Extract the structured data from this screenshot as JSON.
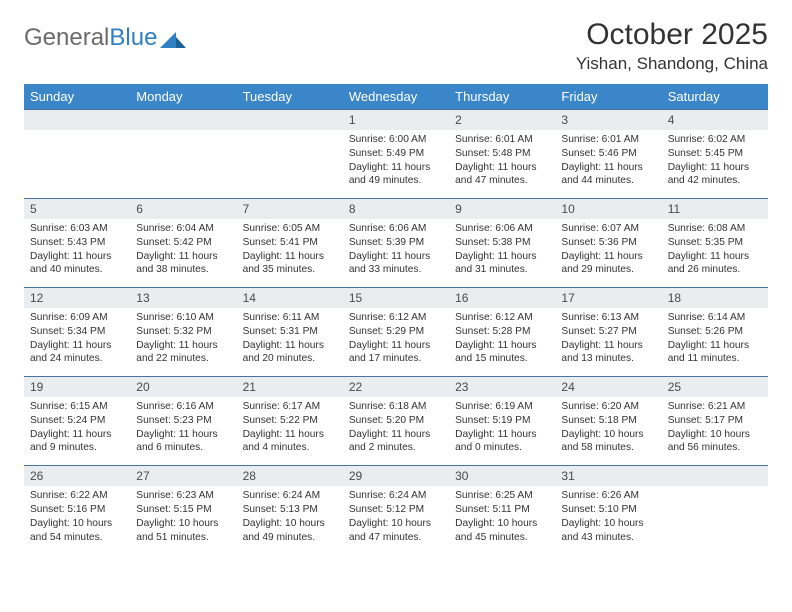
{
  "brand": {
    "part1": "General",
    "part2": "Blue"
  },
  "title": "October 2025",
  "location": "Yishan, Shandong, China",
  "colors": {
    "header_bg": "#3a86c8",
    "header_text": "#ffffff",
    "daynum_bg": "#e9edf0",
    "row_border": "#4a74a0",
    "text": "#333333",
    "logo_gray": "#6b6b6b",
    "logo_blue": "#2f7fc1"
  },
  "day_headers": [
    "Sunday",
    "Monday",
    "Tuesday",
    "Wednesday",
    "Thursday",
    "Friday",
    "Saturday"
  ],
  "weeks": [
    [
      {
        "n": "",
        "sr": "",
        "ss": "",
        "dl": ""
      },
      {
        "n": "",
        "sr": "",
        "ss": "",
        "dl": ""
      },
      {
        "n": "",
        "sr": "",
        "ss": "",
        "dl": ""
      },
      {
        "n": "1",
        "sr": "Sunrise: 6:00 AM",
        "ss": "Sunset: 5:49 PM",
        "dl": "Daylight: 11 hours and 49 minutes."
      },
      {
        "n": "2",
        "sr": "Sunrise: 6:01 AM",
        "ss": "Sunset: 5:48 PM",
        "dl": "Daylight: 11 hours and 47 minutes."
      },
      {
        "n": "3",
        "sr": "Sunrise: 6:01 AM",
        "ss": "Sunset: 5:46 PM",
        "dl": "Daylight: 11 hours and 44 minutes."
      },
      {
        "n": "4",
        "sr": "Sunrise: 6:02 AM",
        "ss": "Sunset: 5:45 PM",
        "dl": "Daylight: 11 hours and 42 minutes."
      }
    ],
    [
      {
        "n": "5",
        "sr": "Sunrise: 6:03 AM",
        "ss": "Sunset: 5:43 PM",
        "dl": "Daylight: 11 hours and 40 minutes."
      },
      {
        "n": "6",
        "sr": "Sunrise: 6:04 AM",
        "ss": "Sunset: 5:42 PM",
        "dl": "Daylight: 11 hours and 38 minutes."
      },
      {
        "n": "7",
        "sr": "Sunrise: 6:05 AM",
        "ss": "Sunset: 5:41 PM",
        "dl": "Daylight: 11 hours and 35 minutes."
      },
      {
        "n": "8",
        "sr": "Sunrise: 6:06 AM",
        "ss": "Sunset: 5:39 PM",
        "dl": "Daylight: 11 hours and 33 minutes."
      },
      {
        "n": "9",
        "sr": "Sunrise: 6:06 AM",
        "ss": "Sunset: 5:38 PM",
        "dl": "Daylight: 11 hours and 31 minutes."
      },
      {
        "n": "10",
        "sr": "Sunrise: 6:07 AM",
        "ss": "Sunset: 5:36 PM",
        "dl": "Daylight: 11 hours and 29 minutes."
      },
      {
        "n": "11",
        "sr": "Sunrise: 6:08 AM",
        "ss": "Sunset: 5:35 PM",
        "dl": "Daylight: 11 hours and 26 minutes."
      }
    ],
    [
      {
        "n": "12",
        "sr": "Sunrise: 6:09 AM",
        "ss": "Sunset: 5:34 PM",
        "dl": "Daylight: 11 hours and 24 minutes."
      },
      {
        "n": "13",
        "sr": "Sunrise: 6:10 AM",
        "ss": "Sunset: 5:32 PM",
        "dl": "Daylight: 11 hours and 22 minutes."
      },
      {
        "n": "14",
        "sr": "Sunrise: 6:11 AM",
        "ss": "Sunset: 5:31 PM",
        "dl": "Daylight: 11 hours and 20 minutes."
      },
      {
        "n": "15",
        "sr": "Sunrise: 6:12 AM",
        "ss": "Sunset: 5:29 PM",
        "dl": "Daylight: 11 hours and 17 minutes."
      },
      {
        "n": "16",
        "sr": "Sunrise: 6:12 AM",
        "ss": "Sunset: 5:28 PM",
        "dl": "Daylight: 11 hours and 15 minutes."
      },
      {
        "n": "17",
        "sr": "Sunrise: 6:13 AM",
        "ss": "Sunset: 5:27 PM",
        "dl": "Daylight: 11 hours and 13 minutes."
      },
      {
        "n": "18",
        "sr": "Sunrise: 6:14 AM",
        "ss": "Sunset: 5:26 PM",
        "dl": "Daylight: 11 hours and 11 minutes."
      }
    ],
    [
      {
        "n": "19",
        "sr": "Sunrise: 6:15 AM",
        "ss": "Sunset: 5:24 PM",
        "dl": "Daylight: 11 hours and 9 minutes."
      },
      {
        "n": "20",
        "sr": "Sunrise: 6:16 AM",
        "ss": "Sunset: 5:23 PM",
        "dl": "Daylight: 11 hours and 6 minutes."
      },
      {
        "n": "21",
        "sr": "Sunrise: 6:17 AM",
        "ss": "Sunset: 5:22 PM",
        "dl": "Daylight: 11 hours and 4 minutes."
      },
      {
        "n": "22",
        "sr": "Sunrise: 6:18 AM",
        "ss": "Sunset: 5:20 PM",
        "dl": "Daylight: 11 hours and 2 minutes."
      },
      {
        "n": "23",
        "sr": "Sunrise: 6:19 AM",
        "ss": "Sunset: 5:19 PM",
        "dl": "Daylight: 11 hours and 0 minutes."
      },
      {
        "n": "24",
        "sr": "Sunrise: 6:20 AM",
        "ss": "Sunset: 5:18 PM",
        "dl": "Daylight: 10 hours and 58 minutes."
      },
      {
        "n": "25",
        "sr": "Sunrise: 6:21 AM",
        "ss": "Sunset: 5:17 PM",
        "dl": "Daylight: 10 hours and 56 minutes."
      }
    ],
    [
      {
        "n": "26",
        "sr": "Sunrise: 6:22 AM",
        "ss": "Sunset: 5:16 PM",
        "dl": "Daylight: 10 hours and 54 minutes."
      },
      {
        "n": "27",
        "sr": "Sunrise: 6:23 AM",
        "ss": "Sunset: 5:15 PM",
        "dl": "Daylight: 10 hours and 51 minutes."
      },
      {
        "n": "28",
        "sr": "Sunrise: 6:24 AM",
        "ss": "Sunset: 5:13 PM",
        "dl": "Daylight: 10 hours and 49 minutes."
      },
      {
        "n": "29",
        "sr": "Sunrise: 6:24 AM",
        "ss": "Sunset: 5:12 PM",
        "dl": "Daylight: 10 hours and 47 minutes."
      },
      {
        "n": "30",
        "sr": "Sunrise: 6:25 AM",
        "ss": "Sunset: 5:11 PM",
        "dl": "Daylight: 10 hours and 45 minutes."
      },
      {
        "n": "31",
        "sr": "Sunrise: 6:26 AM",
        "ss": "Sunset: 5:10 PM",
        "dl": "Daylight: 10 hours and 43 minutes."
      },
      {
        "n": "",
        "sr": "",
        "ss": "",
        "dl": ""
      }
    ]
  ]
}
